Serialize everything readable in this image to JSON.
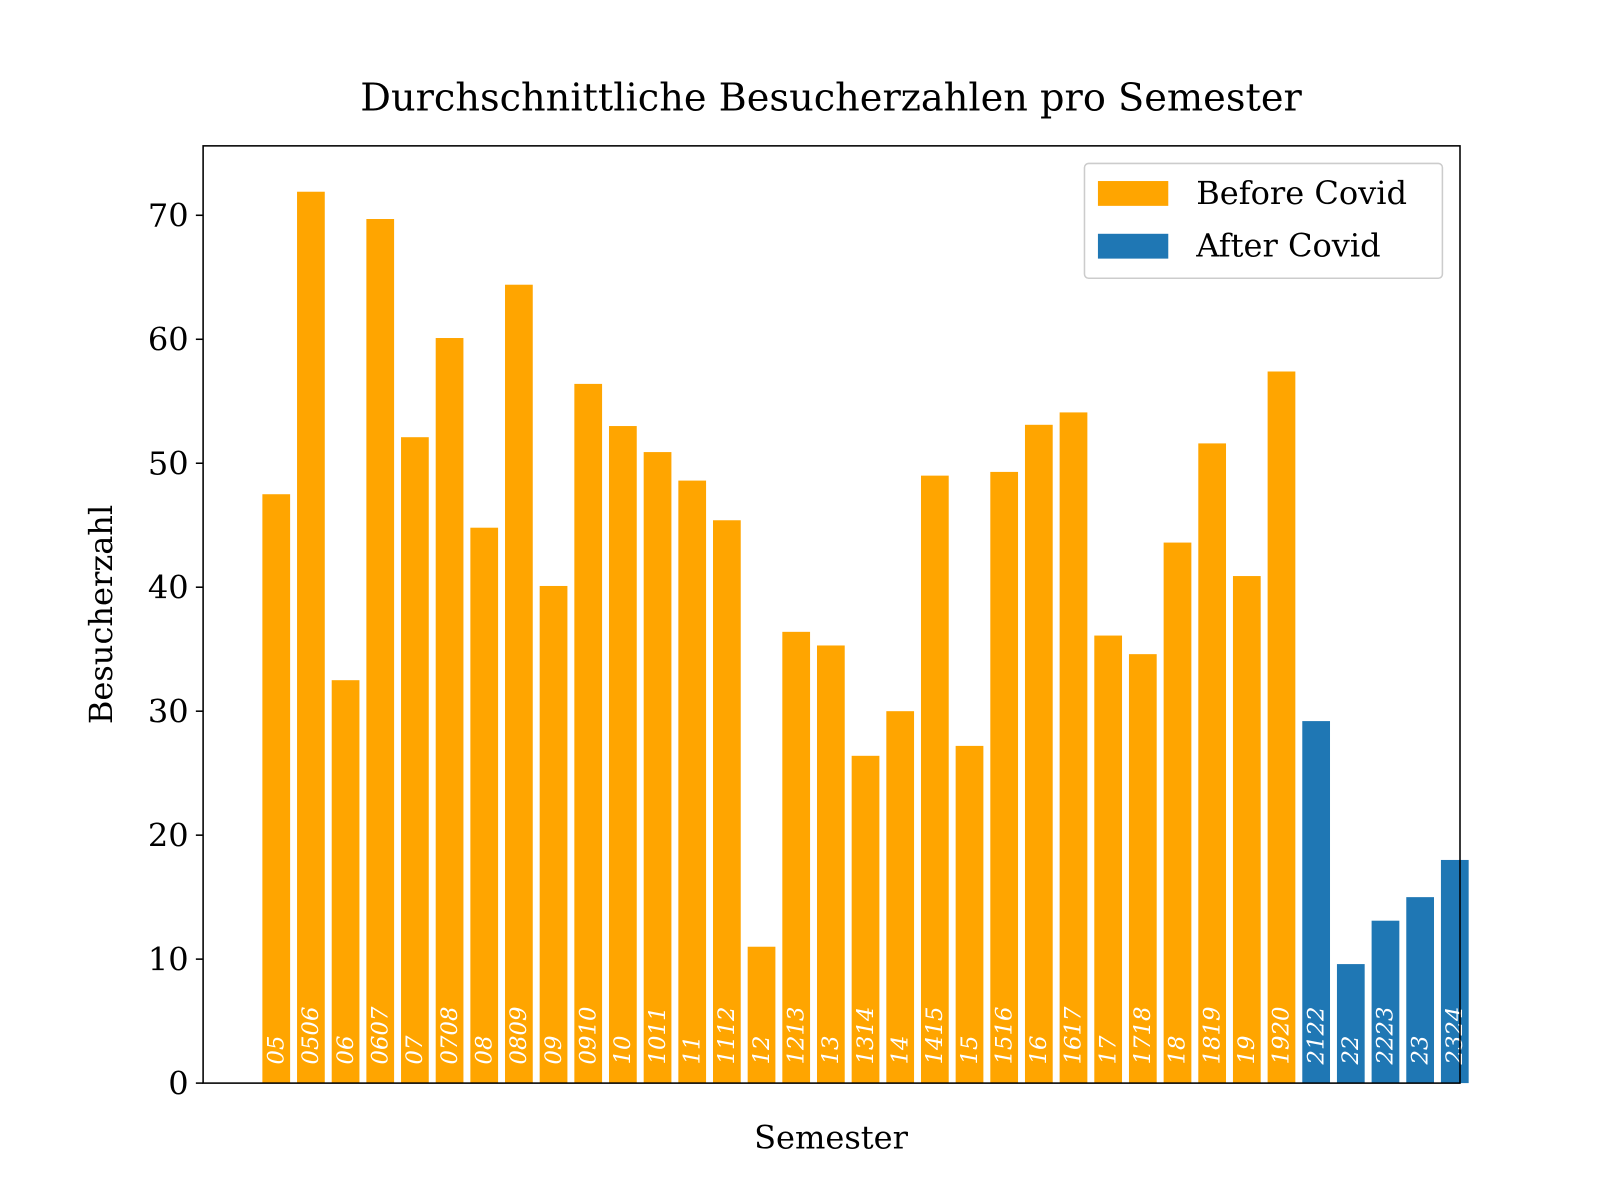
{
  "chart_data": {
    "type": "bar",
    "title": "Durchschnittliche Besucherzahlen pro Semester",
    "x_label": "Semester",
    "y_label": "Besucherzahl",
    "categories": [
      "05",
      "0506",
      "06",
      "0607",
      "07",
      "0708",
      "08",
      "0809",
      "09",
      "0910",
      "10",
      "1011",
      "11",
      "1112",
      "12",
      "1213",
      "13",
      "1314",
      "14",
      "1415",
      "15",
      "1516",
      "16",
      "1617",
      "17",
      "1718",
      "18",
      "1819",
      "19",
      "1920",
      "2122",
      "22",
      "2223",
      "23",
      "2324"
    ],
    "series": [
      {
        "name": "Before Covid",
        "color": "#ffa500",
        "values": [
          47.5,
          71.9,
          32.5,
          69.7,
          52.1,
          60.1,
          44.8,
          64.4,
          40.1,
          56.4,
          53.0,
          50.9,
          48.6,
          45.4,
          11.0,
          36.4,
          35.3,
          26.4,
          30.0,
          49.0,
          27.2,
          49.3,
          53.1,
          54.1,
          36.1,
          34.6,
          43.6,
          51.6,
          40.9,
          57.4,
          null,
          null,
          null,
          null,
          null
        ]
      },
      {
        "name": "After Covid",
        "color": "#1f77b4",
        "values": [
          null,
          null,
          null,
          null,
          null,
          null,
          null,
          null,
          null,
          null,
          null,
          null,
          null,
          null,
          null,
          null,
          null,
          null,
          null,
          null,
          null,
          null,
          null,
          null,
          null,
          null,
          null,
          null,
          null,
          null,
          29.2,
          9.6,
          13.1,
          15.0,
          18.0
        ]
      }
    ],
    "ylim": [
      0,
      75.6
    ],
    "yticks": [
      0,
      10,
      20,
      30,
      40,
      50,
      60,
      70
    ],
    "legend": "upper right"
  }
}
